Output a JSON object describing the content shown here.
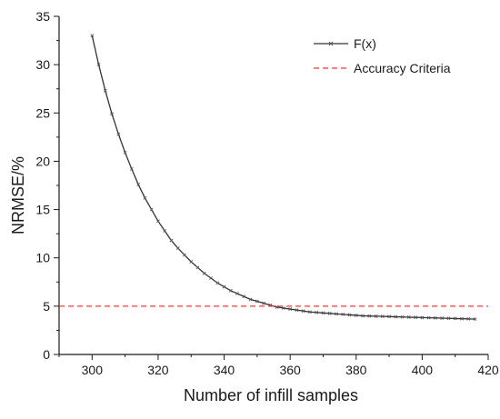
{
  "chart_data": {
    "type": "line",
    "title": "",
    "xlabel": "Number of infill samples",
    "ylabel": "NRMSE/%",
    "xlim": [
      290,
      420
    ],
    "ylim": [
      0,
      35
    ],
    "x_ticks": [
      300,
      320,
      340,
      360,
      380,
      400,
      420
    ],
    "y_ticks": [
      0,
      5,
      10,
      15,
      20,
      25,
      30,
      35
    ],
    "grid": false,
    "legend_position": "top-right",
    "series": [
      {
        "name": "F(x)",
        "color": "#333333",
        "marker": "x",
        "style": "solid",
        "x": [
          300,
          302,
          304,
          306,
          308,
          310,
          312,
          314,
          316,
          318,
          320,
          322,
          324,
          326,
          328,
          330,
          332,
          334,
          336,
          338,
          340,
          342,
          344,
          346,
          348,
          350,
          352,
          354,
          356,
          358,
          360,
          362,
          364,
          366,
          368,
          370,
          372,
          374,
          376,
          378,
          380,
          382,
          384,
          386,
          388,
          390,
          392,
          394,
          396,
          398,
          400,
          402,
          404,
          406,
          408,
          410,
          412,
          414,
          416
        ],
        "y": [
          33.0,
          30.0,
          27.3,
          24.9,
          22.8,
          20.9,
          19.2,
          17.6,
          16.2,
          15.0,
          13.8,
          12.8,
          11.8,
          11.0,
          10.3,
          9.6,
          9.0,
          8.4,
          7.9,
          7.4,
          7.0,
          6.6,
          6.3,
          6.0,
          5.7,
          5.5,
          5.3,
          5.1,
          4.9,
          4.8,
          4.7,
          4.6,
          4.5,
          4.4,
          4.35,
          4.3,
          4.25,
          4.2,
          4.15,
          4.1,
          4.05,
          4.0,
          3.98,
          3.96,
          3.94,
          3.92,
          3.9,
          3.88,
          3.86,
          3.84,
          3.82,
          3.8,
          3.78,
          3.76,
          3.74,
          3.72,
          3.7,
          3.68,
          3.66
        ]
      },
      {
        "name": "Accuracy Criteria",
        "color": "#ff3333",
        "style": "dashed",
        "x": [
          290,
          420
        ],
        "y": [
          5,
          5
        ]
      }
    ]
  }
}
